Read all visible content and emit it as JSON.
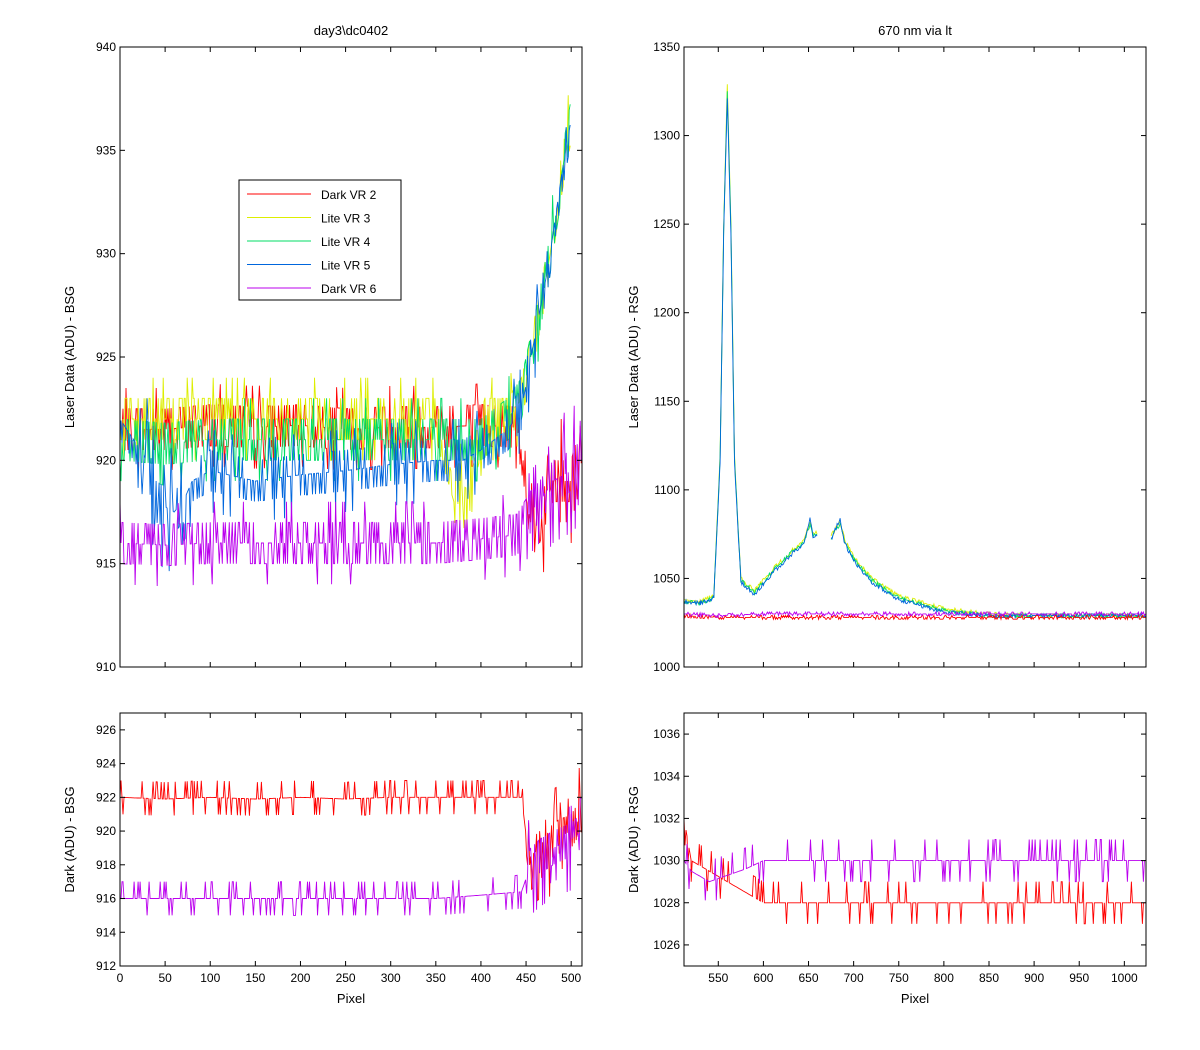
{
  "figure_title_left": "day3\\dc0402",
  "figure_title_right": "670 nm via lt",
  "chart_data": [
    {
      "id": "top-left",
      "type": "line",
      "title": "day3\\dc0402",
      "xlabel": "",
      "ylabel": "Laser Data (ADU) - BSG",
      "xlim": [
        0,
        512
      ],
      "ylim": [
        910,
        940
      ],
      "yticks": [
        910,
        915,
        920,
        925,
        930,
        935,
        940
      ],
      "xticks": [],
      "legend": {
        "placement": "upper-middle",
        "entries": [
          "Dark VR 2",
          "Lite VR 3",
          "Lite VR 4",
          "Lite VR 5",
          "Dark VR 6"
        ]
      },
      "series": [
        {
          "name": "Dark VR 2",
          "color": "#ff0000",
          "x": [
            0,
            50,
            100,
            150,
            200,
            250,
            300,
            350,
            400,
            440,
            455,
            465,
            480,
            500,
            512
          ],
          "y": [
            921.5,
            921.5,
            921.7,
            921.6,
            921.7,
            921.5,
            921.6,
            921.6,
            921.7,
            921.6,
            918,
            917,
            919,
            919,
            921
          ]
        },
        {
          "name": "Lite VR 3",
          "color": "#ddee00",
          "x": [
            0,
            50,
            100,
            150,
            200,
            250,
            300,
            350,
            370,
            390,
            410,
            430,
            445,
            460,
            475,
            490,
            500
          ],
          "y": [
            922,
            922,
            922,
            922,
            922,
            922,
            922,
            922,
            919,
            918.5,
            922,
            922,
            923,
            926,
            929.5,
            934,
            936.5
          ]
        },
        {
          "name": "Lite VR 4",
          "color": "#00dd66",
          "x": [
            0,
            50,
            100,
            150,
            200,
            250,
            300,
            350,
            400,
            430,
            445,
            460,
            475,
            490,
            500
          ],
          "y": [
            921,
            920.8,
            921,
            921,
            921,
            921,
            921,
            921,
            921,
            922,
            923,
            926,
            929.5,
            934,
            936.5
          ]
        },
        {
          "name": "Lite VR 5",
          "color": "#0066dd",
          "x": [
            0,
            30,
            40,
            60,
            70,
            80,
            100,
            150,
            200,
            250,
            300,
            350,
            380,
            400,
            430,
            445,
            460,
            475,
            490,
            500
          ],
          "y": [
            922,
            920,
            918,
            917.5,
            918,
            919,
            919.5,
            919,
            919.3,
            919.5,
            919.8,
            920,
            920,
            920.5,
            921.5,
            922.5,
            926,
            929.5,
            934,
            936.5
          ]
        },
        {
          "name": "Dark VR 6",
          "color": "#bb00ee",
          "x": [
            0,
            50,
            100,
            150,
            200,
            250,
            300,
            350,
            400,
            440,
            455,
            465,
            480,
            500,
            512
          ],
          "y": [
            916,
            915.9,
            916,
            916,
            916,
            916,
            916,
            916,
            916.2,
            916.4,
            917.5,
            918,
            919,
            919.5,
            920
          ]
        }
      ]
    },
    {
      "id": "top-right",
      "type": "line",
      "title": "670 nm via lt",
      "xlabel": "",
      "ylabel": "Laser Data (ADU) - RSG",
      "xlim": [
        512,
        1024
      ],
      "ylim": [
        1000,
        1350
      ],
      "yticks": [
        1000,
        1050,
        1100,
        1150,
        1200,
        1250,
        1300,
        1350
      ],
      "xticks": [],
      "series": [
        {
          "name": "Lite VR 3",
          "color": "#ddee00",
          "x": [
            512,
            530,
            545,
            552,
            556,
            560,
            564,
            568,
            575,
            590,
            610,
            630,
            645,
            652,
            655,
            660,
            665,
            675,
            685,
            690,
            700,
            720,
            750,
            800,
            850,
            900,
            950,
            1000,
            1024
          ],
          "y": [
            1038,
            1037,
            1040,
            1120,
            1250,
            1330,
            1250,
            1120,
            1050,
            1043,
            1055,
            1065,
            1072,
            1082,
            1075,
            1076,
            null,
            1074,
            1082,
            1072,
            1062,
            1050,
            1040,
            1033,
            1030,
            1029,
            1029,
            1029,
            1029
          ]
        },
        {
          "name": "Lite VR 4",
          "color": "#00dd66",
          "x": [
            512,
            530,
            545,
            552,
            556,
            560,
            564,
            568,
            575,
            590,
            610,
            630,
            645,
            652,
            655,
            660,
            665,
            675,
            685,
            690,
            700,
            720,
            750,
            800,
            850,
            900,
            950,
            1000,
            1024
          ],
          "y": [
            1037,
            1036,
            1039,
            1118,
            1248,
            1326,
            1248,
            1118,
            1049,
            1042,
            1054,
            1064,
            1071,
            1081,
            1074,
            1075,
            null,
            1073,
            1081,
            1071,
            1061,
            1049,
            1039,
            1032,
            1029,
            1029,
            1029,
            1029,
            1029
          ]
        },
        {
          "name": "Lite VR 5",
          "color": "#0066dd",
          "x": [
            512,
            530,
            545,
            552,
            556,
            560,
            564,
            568,
            575,
            590,
            610,
            630,
            645,
            652,
            655,
            660,
            665,
            675,
            685,
            690,
            700,
            720,
            750,
            800,
            850,
            900,
            950,
            1000,
            1024
          ],
          "y": [
            1037,
            1036,
            1039,
            1116,
            1245,
            1322,
            1245,
            1116,
            1048,
            1041,
            1053,
            1063,
            1070,
            1084,
            1073,
            1074,
            null,
            1072,
            1084,
            1070,
            1060,
            1048,
            1038,
            1031,
            1029,
            1029,
            1029,
            1029,
            1029
          ]
        },
        {
          "name": "Dark VR 2",
          "color": "#ff0000",
          "x": [
            512,
            550,
            600,
            650,
            700,
            750,
            800,
            850,
            900,
            950,
            1000,
            1024
          ],
          "y": [
            1029,
            1028,
            1028,
            1028,
            1028,
            1028,
            1028,
            1028,
            1028,
            1028,
            1028,
            1028
          ]
        },
        {
          "name": "Dark VR 6",
          "color": "#bb00ee",
          "x": [
            512,
            550,
            600,
            650,
            700,
            750,
            800,
            850,
            900,
            950,
            1000,
            1024
          ],
          "y": [
            1030,
            1029,
            1030,
            1030,
            1030,
            1030,
            1030,
            1030,
            1030,
            1030,
            1030,
            1030
          ]
        }
      ]
    },
    {
      "id": "bottom-left",
      "type": "line",
      "title": "",
      "xlabel": "Pixel",
      "ylabel": "Dark (ADU) - BSG",
      "xlim": [
        0,
        512
      ],
      "ylim": [
        912,
        927
      ],
      "yticks": [
        912,
        914,
        916,
        918,
        920,
        922,
        924,
        926
      ],
      "xticks": [
        0,
        50,
        100,
        150,
        200,
        250,
        300,
        350,
        400,
        450,
        500
      ],
      "series": [
        {
          "name": "Dark VR 2",
          "color": "#ff0000",
          "x": [
            0,
            50,
            100,
            150,
            200,
            250,
            300,
            350,
            400,
            445,
            455,
            465,
            480,
            500,
            512
          ],
          "y": [
            922,
            921.9,
            922,
            921.9,
            922,
            921.9,
            922,
            922,
            922,
            922,
            917.5,
            918,
            919.5,
            920,
            921
          ]
        },
        {
          "name": "Dark VR 6",
          "color": "#bb00ee",
          "x": [
            0,
            50,
            100,
            150,
            200,
            250,
            300,
            350,
            400,
            445,
            455,
            465,
            480,
            500,
            512
          ],
          "y": [
            916,
            916,
            916,
            916,
            916,
            916,
            916,
            916,
            916.2,
            916.4,
            918,
            918.5,
            919,
            919.5,
            920
          ]
        }
      ]
    },
    {
      "id": "bottom-right",
      "type": "line",
      "title": "",
      "xlabel": "Pixel",
      "ylabel": "Dark (ADU) - RSG",
      "xlim": [
        512,
        1024
      ],
      "ylim": [
        1025,
        1037
      ],
      "yticks": [
        1026,
        1028,
        1030,
        1032,
        1034,
        1036
      ],
      "xticks": [
        550,
        600,
        650,
        700,
        750,
        800,
        850,
        900,
        950,
        1000
      ],
      "series": [
        {
          "name": "Dark VR 2",
          "color": "#ff0000",
          "x": [
            512,
            520,
            540,
            560,
            580,
            600,
            650,
            700,
            750,
            800,
            850,
            900,
            950,
            1000,
            1024
          ],
          "y": [
            1032,
            1030,
            1029.5,
            1029,
            1028.5,
            1028,
            1028,
            1028,
            1028,
            1028,
            1028,
            1028,
            1028,
            1028,
            1028
          ]
        },
        {
          "name": "Dark VR 6",
          "color": "#bb00ee",
          "x": [
            512,
            520,
            540,
            560,
            580,
            600,
            650,
            700,
            750,
            800,
            850,
            900,
            950,
            1000,
            1024
          ],
          "y": [
            1030,
            1029.5,
            1029,
            1029.3,
            1029.6,
            1030,
            1030,
            1030,
            1030,
            1030,
            1030,
            1030,
            1030,
            1030,
            1030
          ]
        }
      ]
    }
  ]
}
